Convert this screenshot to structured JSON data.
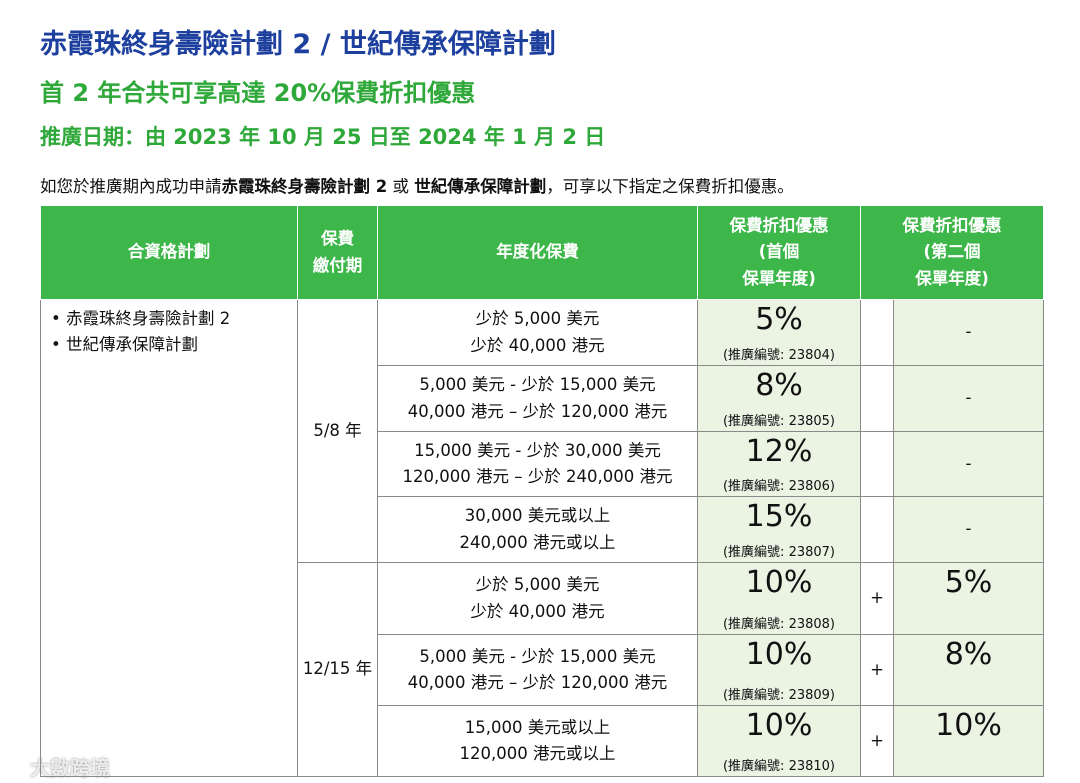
{
  "header": {
    "title": "赤霞珠終身壽險計劃 2 / 世紀傳承保障計劃",
    "subtitle": "首 2 年合共可享高達 20%保費折扣優惠",
    "promo_period": "推廣日期：由 2023 年 10 月 25 日至 2024 年 1 月 2 日"
  },
  "intro": [
    {
      "text": "如您於推廣期內成功申請",
      "bold": false
    },
    {
      "text": "赤霞珠終身壽險計劃 2",
      "bold": true
    },
    {
      "text": " 或 ",
      "bold": false
    },
    {
      "text": "世紀傳承保障計劃",
      "bold": true
    },
    {
      "text": "，可享以下指定之保費折扣優惠。",
      "bold": false
    }
  ],
  "table": {
    "headers": [
      [
        "合資格計劃"
      ],
      [
        "保費",
        "繳付期"
      ],
      [
        "年度化保費"
      ],
      [
        "保費折扣優惠",
        "(首個",
        "保單年度)"
      ],
      [
        "保費折扣優惠",
        "(第二個",
        "保單年度)"
      ]
    ],
    "plans": [
      "赤霞珠終身壽險計劃 2",
      "世紀傳承保障計劃"
    ],
    "groups": [
      {
        "period": "5/8 年",
        "rows": [
          {
            "premium": [
              "少於 5,000 美元",
              "少於 40,000 港元"
            ],
            "discount1": "5%",
            "code": "(推廣編號: 23804)",
            "discount2": "-"
          },
          {
            "premium": [
              "5,000 美元 - 少於 15,000 美元",
              "40,000 港元 – 少於 120,000 港元"
            ],
            "discount1": "8%",
            "code": "(推廣編號: 23805)",
            "discount2": "-"
          },
          {
            "premium": [
              "15,000 美元 - 少於 30,000 美元",
              "120,000 港元 – 少於 240,000 港元"
            ],
            "discount1": "12%",
            "code": "(推廣編號: 23806)",
            "discount2": "-"
          },
          {
            "premium": [
              "30,000 美元或以上",
              "240,000 港元或以上"
            ],
            "discount1": "15%",
            "code": "(推廣編號: 23807)",
            "discount2": "-"
          }
        ]
      },
      {
        "period": "12/15 年",
        "rows": [
          {
            "premium": [
              "少於 5,000 美元",
              "少於 40,000 港元"
            ],
            "discount1": "10%",
            "code": "(推廣編號: 23808)",
            "plus": "+",
            "discount2": "5%"
          },
          {
            "premium": [
              "5,000 美元 - 少於 15,000 美元",
              "40,000 港元 – 少於 120,000 港元"
            ],
            "discount1": "10%",
            "code": "(推廣編號: 23809)",
            "plus": "+",
            "discount2": "8%"
          },
          {
            "premium": [
              "15,000 美元或以上",
              "120,000 港元或以上"
            ],
            "discount1": "10%",
            "code": "(推廣編號: 23810)",
            "plus": "+",
            "discount2": "10%"
          }
        ]
      }
    ]
  },
  "watermark": "大數跨境"
}
